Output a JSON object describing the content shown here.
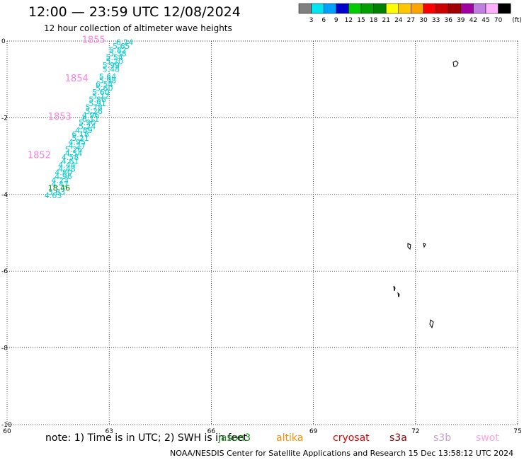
{
  "title": "12:00 — 23:59 UTC 12/08/2024",
  "subtitle": "12 hour collection of altimeter wave heights",
  "footer": {
    "note": "note:  1) Time is in UTC; 2) SWH is in feet",
    "credit": "NOAA/NESDIS Center for Satellite Applications and Research    15 Dec 13:58:12 UTC 2024"
  },
  "missions": [
    {
      "name": "jason3",
      "color": "#228b22"
    },
    {
      "name": "altika",
      "color": "#ff8c00"
    },
    {
      "name": "cryosat",
      "color": "#dd0000"
    },
    {
      "name": "s3a",
      "color": "#8b0000"
    },
    {
      "name": "s3b",
      "color": "#c8a2c8"
    },
    {
      "name": "swot",
      "color": "#ffa0e0"
    }
  ],
  "colorbar": {
    "unit": "(ft)",
    "ticks": [
      "3",
      "6",
      "9",
      "12",
      "15",
      "18",
      "21",
      "24",
      "27",
      "30",
      "33",
      "36",
      "39",
      "42",
      "45",
      "70"
    ],
    "colors": [
      "#808080",
      "#00e5ee",
      "#00a0ff",
      "#0000cd",
      "#00cd00",
      "#00a000",
      "#008000",
      "#ffff00",
      "#ffc800",
      "#ffa500",
      "#ff0000",
      "#cd0000",
      "#a00000",
      "#a000a0",
      "#c080e0",
      "#ffb0ff",
      "#000000"
    ]
  },
  "map": {
    "xlim": [
      60,
      75
    ],
    "ylim": [
      -10,
      0
    ],
    "x_ticks": [
      "60",
      "63",
      "66",
      "69",
      "72",
      "75"
    ],
    "y_ticks": [
      "0",
      "-2",
      "-4",
      "-6",
      "-8",
      "-10"
    ]
  },
  "tracks": [
    {
      "mission": "jason3",
      "times": [
        {
          "label": "1855",
          "lon": 62.2,
          "lat": -0.05,
          "color": "#ff80e0"
        },
        {
          "label": "1854",
          "lon": 61.7,
          "lat": -1.05,
          "color": "#ff80e0"
        },
        {
          "label": "1853",
          "lon": 61.2,
          "lat": -2.05,
          "color": "#ff80e0"
        },
        {
          "label": "1852",
          "lon": 60.6,
          "lat": -3.05,
          "color": "#ff80e0"
        }
      ],
      "points": [
        {
          "v": "6.24",
          "lon": 63.2,
          "lat": -0.1,
          "c": "#00cccc"
        },
        {
          "v": "5.65",
          "lon": 63.1,
          "lat": -0.2,
          "c": "#00cccc"
        },
        {
          "v": "5.82",
          "lon": 63.0,
          "lat": -0.3,
          "c": "#00cccc"
        },
        {
          "v": "5.38",
          "lon": 63.0,
          "lat": -0.4,
          "c": "#00cccc"
        },
        {
          "v": "5.54",
          "lon": 62.9,
          "lat": -0.5,
          "c": "#00cccc"
        },
        {
          "v": "5.20",
          "lon": 62.9,
          "lat": -0.6,
          "c": "#00cccc"
        },
        {
          "v": "5.99",
          "lon": 62.8,
          "lat": -0.7,
          "c": "#00cccc"
        },
        {
          "v": "5.48",
          "lon": 62.8,
          "lat": -0.8,
          "c": "#00cccc"
        },
        {
          "v": "5.64",
          "lon": 62.7,
          "lat": -1.0,
          "c": "#00cccc"
        },
        {
          "v": "5.98",
          "lon": 62.7,
          "lat": -1.1,
          "c": "#00cccc"
        },
        {
          "v": "6.54",
          "lon": 62.6,
          "lat": -1.2,
          "c": "#00cccc"
        },
        {
          "v": "5.60",
          "lon": 62.6,
          "lat": -1.3,
          "c": "#00cccc"
        },
        {
          "v": "5.60",
          "lon": 62.5,
          "lat": -1.4,
          "c": "#00cccc"
        },
        {
          "v": "5.72",
          "lon": 62.5,
          "lat": -1.5,
          "c": "#00cccc"
        },
        {
          "v": "5.86",
          "lon": 62.4,
          "lat": -1.6,
          "c": "#00cccc"
        },
        {
          "v": "5.91",
          "lon": 62.4,
          "lat": -1.7,
          "c": "#00cccc"
        },
        {
          "v": "5.78",
          "lon": 62.3,
          "lat": -1.8,
          "c": "#00cccc"
        },
        {
          "v": "5.26",
          "lon": 62.3,
          "lat": -1.9,
          "c": "#00cccc"
        },
        {
          "v": "4.96",
          "lon": 62.2,
          "lat": -2.0,
          "c": "#00cccc"
        },
        {
          "v": "6.11",
          "lon": 62.2,
          "lat": -2.1,
          "c": "#00cccc"
        },
        {
          "v": "5.90",
          "lon": 62.1,
          "lat": -2.2,
          "c": "#00cccc"
        },
        {
          "v": "5.24",
          "lon": 62.1,
          "lat": -2.3,
          "c": "#00cccc"
        },
        {
          "v": "4.89",
          "lon": 62.0,
          "lat": -2.4,
          "c": "#00cccc"
        },
        {
          "v": "6.18",
          "lon": 61.9,
          "lat": -2.5,
          "c": "#00cccc"
        },
        {
          "v": "5.21",
          "lon": 61.9,
          "lat": -2.6,
          "c": "#00cccc"
        },
        {
          "v": "4.95",
          "lon": 61.8,
          "lat": -2.7,
          "c": "#00cccc"
        },
        {
          "v": "4.27",
          "lon": 61.8,
          "lat": -2.8,
          "c": "#00cccc"
        },
        {
          "v": "5.26",
          "lon": 61.7,
          "lat": -2.9,
          "c": "#00cccc"
        },
        {
          "v": "4.54",
          "lon": 61.7,
          "lat": -3.0,
          "c": "#00cccc"
        },
        {
          "v": "4.58",
          "lon": 61.6,
          "lat": -3.1,
          "c": "#00cccc"
        },
        {
          "v": "4.61",
          "lon": 61.6,
          "lat": -3.2,
          "c": "#00cccc"
        },
        {
          "v": "4.44",
          "lon": 61.5,
          "lat": -3.3,
          "c": "#00cccc"
        },
        {
          "v": "4.48",
          "lon": 61.5,
          "lat": -3.4,
          "c": "#00cccc"
        },
        {
          "v": "4.80",
          "lon": 61.4,
          "lat": -3.5,
          "c": "#00cccc"
        },
        {
          "v": "4.96",
          "lon": 61.4,
          "lat": -3.6,
          "c": "#00cccc"
        },
        {
          "v": "4.23",
          "lon": 61.3,
          "lat": -3.7,
          "c": "#00cccc"
        },
        {
          "v": "4.47",
          "lon": 61.3,
          "lat": -3.8,
          "c": "#00cccc"
        },
        {
          "v": "18.46",
          "lon": 61.2,
          "lat": -3.9,
          "c": "#008000"
        },
        {
          "v": "3.63",
          "lon": 61.2,
          "lat": -4.0,
          "c": "#00cccc"
        },
        {
          "v": "4.63",
          "lon": 61.1,
          "lat": -4.1,
          "c": "#00cccc"
        }
      ]
    }
  ]
}
